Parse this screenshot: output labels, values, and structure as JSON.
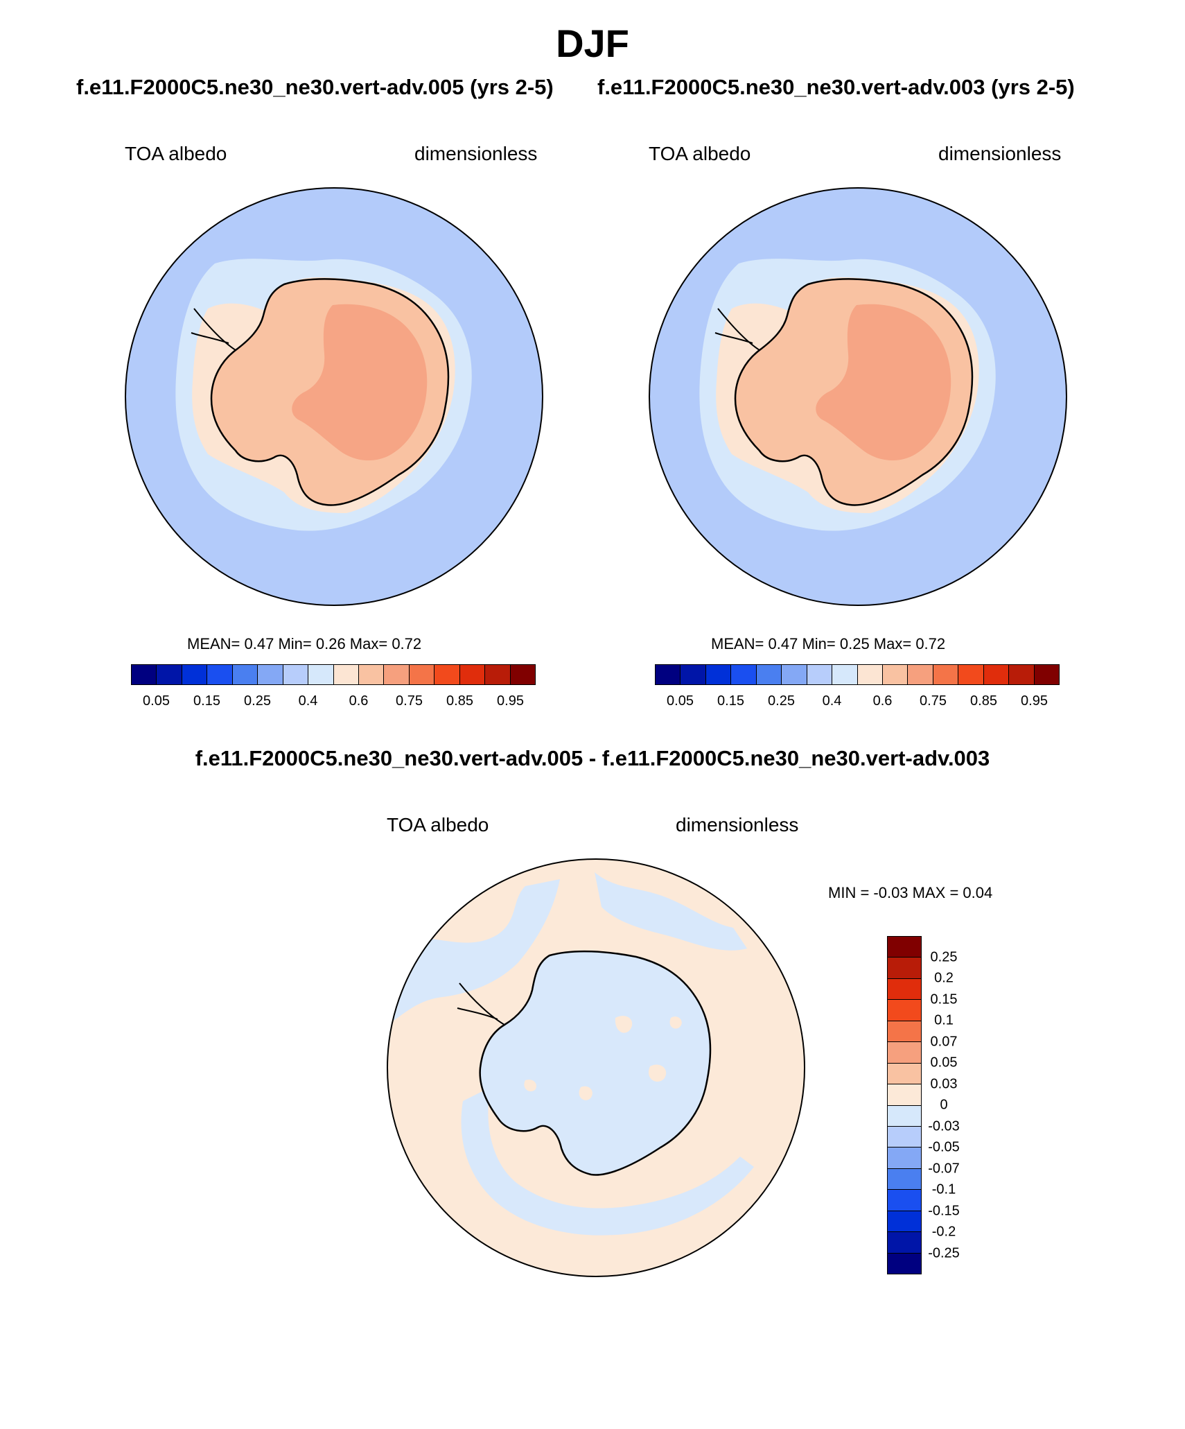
{
  "figure": {
    "season": "DJF",
    "panels": [
      {
        "case": "f.e11.F2000C5.ne30_ne30.vert-adv.005 (yrs 2-5)",
        "variable": "TOA albedo",
        "units": "dimensionless",
        "stats": "MEAN=   0.47   Min=   0.26   Max=   0.72"
      },
      {
        "case": "f.e11.F2000C5.ne30_ne30.vert-adv.003 (yrs 2-5)",
        "variable": "TOA albedo",
        "units": "dimensionless",
        "stats": "MEAN=   0.47   Min=   0.25   Max=   0.72"
      }
    ],
    "difference": {
      "title": "f.e11.F2000C5.ne30_ne30.vert-adv.005 - f.e11.F2000C5.ne30_ne30.vert-adv.003",
      "variable": "TOA albedo",
      "units": "dimensionless",
      "stats": "MIN =  -0.03 MAX =    0.04"
    },
    "colorbar_main": {
      "labels": [
        "0.05",
        "0.15",
        "0.25",
        "0.4",
        "0.6",
        "0.75",
        "0.85",
        "0.95"
      ],
      "colors": [
        "#000080",
        "#0015a8",
        "#0030d8",
        "#1a4ff0",
        "#4a7ff0",
        "#84a8f5",
        "#b7cdfb",
        "#d6e8fb",
        "#fce5d3",
        "#f9c2a2",
        "#f6a07e",
        "#f47448",
        "#f24a1c",
        "#e02d0c",
        "#b81c08",
        "#800000"
      ]
    },
    "colorbar_diff": {
      "labels": [
        "0.25",
        "0.2",
        "0.15",
        "0.1",
        "0.07",
        "0.05",
        "0.03",
        "0",
        "-0.03",
        "-0.05",
        "-0.07",
        "-0.1",
        "-0.15",
        "-0.2",
        "-0.25"
      ],
      "colors": [
        "#800000",
        "#b81c08",
        "#e02d0c",
        "#f24a1c",
        "#f47448",
        "#f6a07e",
        "#f9c2a2",
        "#fce9d8",
        "#d6e8fb",
        "#b7cdfb",
        "#84a8f5",
        "#4a7ff0",
        "#1a4ff0",
        "#0030d8",
        "#0015a8",
        "#000080"
      ]
    },
    "map_colors": {
      "ocean": "#b3cbfa",
      "sea_ice_light": "#d6e8fb",
      "coast_band": "#fce5d3",
      "ice_sheet": "#f9c2a2",
      "plateau": "#f6a585",
      "diff_positive": "#fce9d8",
      "diff_negative": "#d8e8fb"
    }
  }
}
